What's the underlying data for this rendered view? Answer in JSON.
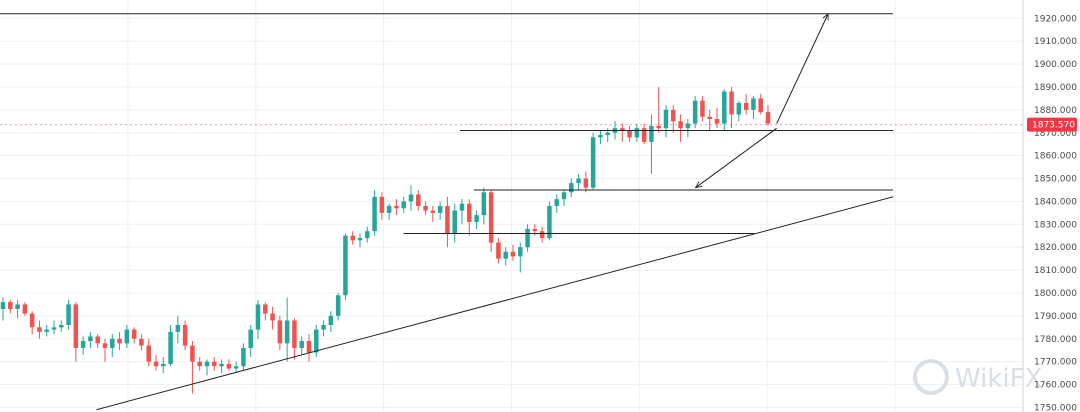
{
  "chart_data": {
    "type": "candlestick",
    "y_axis": {
      "min": 1748,
      "max": 1928,
      "ticks": [
        "1920.000",
        "1910.000",
        "1900.000",
        "1890.000",
        "1880.000",
        "1870.000",
        "1860.000",
        "1850.000",
        "1840.000",
        "1830.000",
        "1820.000",
        "1810.000",
        "1800.000",
        "1790.000",
        "1780.000",
        "1770.000",
        "1760.000",
        "1750.000"
      ],
      "position": "right"
    },
    "current_price": {
      "label": "1873.570",
      "value": 1873.57,
      "color": "#f23645"
    },
    "colors": {
      "up": "#26a69a",
      "down": "#ef5350",
      "grid": "#eef0f3",
      "line": "#222222"
    },
    "grid": true,
    "candles": [
      {
        "o": 1793,
        "h": 1798,
        "l": 1788,
        "c": 1796
      },
      {
        "o": 1796,
        "h": 1797,
        "l": 1791,
        "c": 1793
      },
      {
        "o": 1793,
        "h": 1797,
        "l": 1789,
        "c": 1795
      },
      {
        "o": 1795,
        "h": 1796,
        "l": 1790,
        "c": 1791
      },
      {
        "o": 1791,
        "h": 1792,
        "l": 1782,
        "c": 1785
      },
      {
        "o": 1785,
        "h": 1788,
        "l": 1780,
        "c": 1783
      },
      {
        "o": 1783,
        "h": 1786,
        "l": 1781,
        "c": 1784
      },
      {
        "o": 1784,
        "h": 1788,
        "l": 1782,
        "c": 1785
      },
      {
        "o": 1785,
        "h": 1788,
        "l": 1783,
        "c": 1786
      },
      {
        "o": 1786,
        "h": 1797,
        "l": 1784,
        "c": 1795
      },
      {
        "o": 1795,
        "h": 1796,
        "l": 1770,
        "c": 1776
      },
      {
        "o": 1776,
        "h": 1781,
        "l": 1773,
        "c": 1779
      },
      {
        "o": 1779,
        "h": 1783,
        "l": 1776,
        "c": 1781
      },
      {
        "o": 1781,
        "h": 1782,
        "l": 1776,
        "c": 1778
      },
      {
        "o": 1778,
        "h": 1780,
        "l": 1770,
        "c": 1776
      },
      {
        "o": 1776,
        "h": 1782,
        "l": 1772,
        "c": 1780
      },
      {
        "o": 1780,
        "h": 1783,
        "l": 1775,
        "c": 1778
      },
      {
        "o": 1778,
        "h": 1786,
        "l": 1776,
        "c": 1784
      },
      {
        "o": 1784,
        "h": 1785,
        "l": 1778,
        "c": 1780
      },
      {
        "o": 1780,
        "h": 1782,
        "l": 1775,
        "c": 1777
      },
      {
        "o": 1777,
        "h": 1780,
        "l": 1768,
        "c": 1770
      },
      {
        "o": 1770,
        "h": 1773,
        "l": 1766,
        "c": 1768
      },
      {
        "o": 1768,
        "h": 1772,
        "l": 1765,
        "c": 1769
      },
      {
        "o": 1769,
        "h": 1786,
        "l": 1768,
        "c": 1783
      },
      {
        "o": 1783,
        "h": 1790,
        "l": 1778,
        "c": 1786
      },
      {
        "o": 1786,
        "h": 1788,
        "l": 1775,
        "c": 1777
      },
      {
        "o": 1777,
        "h": 1779,
        "l": 1756,
        "c": 1770
      },
      {
        "o": 1770,
        "h": 1772,
        "l": 1766,
        "c": 1768
      },
      {
        "o": 1768,
        "h": 1771,
        "l": 1764,
        "c": 1770
      },
      {
        "o": 1770,
        "h": 1772,
        "l": 1766,
        "c": 1768
      },
      {
        "o": 1768,
        "h": 1771,
        "l": 1765,
        "c": 1769
      },
      {
        "o": 1769,
        "h": 1771,
        "l": 1766,
        "c": 1767
      },
      {
        "o": 1767,
        "h": 1770,
        "l": 1765,
        "c": 1768
      },
      {
        "o": 1768,
        "h": 1778,
        "l": 1766,
        "c": 1776
      },
      {
        "o": 1776,
        "h": 1786,
        "l": 1772,
        "c": 1784
      },
      {
        "o": 1784,
        "h": 1797,
        "l": 1780,
        "c": 1795
      },
      {
        "o": 1795,
        "h": 1796,
        "l": 1788,
        "c": 1791
      },
      {
        "o": 1791,
        "h": 1794,
        "l": 1784,
        "c": 1788
      },
      {
        "o": 1788,
        "h": 1790,
        "l": 1775,
        "c": 1778
      },
      {
        "o": 1778,
        "h": 1798,
        "l": 1770,
        "c": 1788
      },
      {
        "o": 1788,
        "h": 1789,
        "l": 1771,
        "c": 1776
      },
      {
        "o": 1776,
        "h": 1781,
        "l": 1773,
        "c": 1779
      },
      {
        "o": 1779,
        "h": 1782,
        "l": 1770,
        "c": 1774
      },
      {
        "o": 1774,
        "h": 1786,
        "l": 1772,
        "c": 1784
      },
      {
        "o": 1784,
        "h": 1788,
        "l": 1781,
        "c": 1786
      },
      {
        "o": 1786,
        "h": 1792,
        "l": 1783,
        "c": 1790
      },
      {
        "o": 1790,
        "h": 1800,
        "l": 1788,
        "c": 1799
      },
      {
        "o": 1799,
        "h": 1826,
        "l": 1797,
        "c": 1825
      },
      {
        "o": 1825,
        "h": 1827,
        "l": 1821,
        "c": 1823
      },
      {
        "o": 1823,
        "h": 1826,
        "l": 1820,
        "c": 1824
      },
      {
        "o": 1824,
        "h": 1829,
        "l": 1822,
        "c": 1827
      },
      {
        "o": 1827,
        "h": 1845,
        "l": 1825,
        "c": 1842
      },
      {
        "o": 1842,
        "h": 1844,
        "l": 1832,
        "c": 1835
      },
      {
        "o": 1835,
        "h": 1839,
        "l": 1832,
        "c": 1838
      },
      {
        "o": 1838,
        "h": 1841,
        "l": 1834,
        "c": 1837
      },
      {
        "o": 1837,
        "h": 1842,
        "l": 1835,
        "c": 1840
      },
      {
        "o": 1840,
        "h": 1847,
        "l": 1836,
        "c": 1843
      },
      {
        "o": 1843,
        "h": 1845,
        "l": 1836,
        "c": 1838
      },
      {
        "o": 1838,
        "h": 1840,
        "l": 1834,
        "c": 1836
      },
      {
        "o": 1836,
        "h": 1838,
        "l": 1831,
        "c": 1835
      },
      {
        "o": 1835,
        "h": 1840,
        "l": 1832,
        "c": 1838
      },
      {
        "o": 1838,
        "h": 1842,
        "l": 1820,
        "c": 1826
      },
      {
        "o": 1826,
        "h": 1839,
        "l": 1822,
        "c": 1836
      },
      {
        "o": 1836,
        "h": 1841,
        "l": 1830,
        "c": 1839
      },
      {
        "o": 1839,
        "h": 1841,
        "l": 1825,
        "c": 1831
      },
      {
        "o": 1831,
        "h": 1836,
        "l": 1828,
        "c": 1834
      },
      {
        "o": 1834,
        "h": 1846,
        "l": 1830,
        "c": 1844
      },
      {
        "o": 1844,
        "h": 1845,
        "l": 1818,
        "c": 1822
      },
      {
        "o": 1822,
        "h": 1824,
        "l": 1813,
        "c": 1815
      },
      {
        "o": 1815,
        "h": 1820,
        "l": 1812,
        "c": 1818
      },
      {
        "o": 1818,
        "h": 1821,
        "l": 1814,
        "c": 1816
      },
      {
        "o": 1816,
        "h": 1822,
        "l": 1809,
        "c": 1820
      },
      {
        "o": 1820,
        "h": 1830,
        "l": 1818,
        "c": 1828
      },
      {
        "o": 1828,
        "h": 1830,
        "l": 1825,
        "c": 1827
      },
      {
        "o": 1827,
        "h": 1829,
        "l": 1822,
        "c": 1824
      },
      {
        "o": 1824,
        "h": 1840,
        "l": 1823,
        "c": 1838
      },
      {
        "o": 1838,
        "h": 1843,
        "l": 1835,
        "c": 1841
      },
      {
        "o": 1841,
        "h": 1845,
        "l": 1838,
        "c": 1844
      },
      {
        "o": 1844,
        "h": 1850,
        "l": 1842,
        "c": 1848
      },
      {
        "o": 1848,
        "h": 1852,
        "l": 1845,
        "c": 1850
      },
      {
        "o": 1850,
        "h": 1853,
        "l": 1844,
        "c": 1846
      },
      {
        "o": 1846,
        "h": 1870,
        "l": 1845,
        "c": 1868
      },
      {
        "o": 1868,
        "h": 1871,
        "l": 1865,
        "c": 1869
      },
      {
        "o": 1869,
        "h": 1872,
        "l": 1866,
        "c": 1870
      },
      {
        "o": 1870,
        "h": 1875,
        "l": 1867,
        "c": 1872
      },
      {
        "o": 1872,
        "h": 1874,
        "l": 1866,
        "c": 1871
      },
      {
        "o": 1871,
        "h": 1873,
        "l": 1866,
        "c": 1868
      },
      {
        "o": 1868,
        "h": 1874,
        "l": 1866,
        "c": 1872
      },
      {
        "o": 1872,
        "h": 1874,
        "l": 1865,
        "c": 1866
      },
      {
        "o": 1866,
        "h": 1878,
        "l": 1852,
        "c": 1873
      },
      {
        "o": 1873,
        "h": 1890,
        "l": 1870,
        "c": 1872
      },
      {
        "o": 1872,
        "h": 1882,
        "l": 1868,
        "c": 1880
      },
      {
        "o": 1880,
        "h": 1882,
        "l": 1870,
        "c": 1875
      },
      {
        "o": 1875,
        "h": 1878,
        "l": 1866,
        "c": 1872
      },
      {
        "o": 1872,
        "h": 1876,
        "l": 1868,
        "c": 1874
      },
      {
        "o": 1874,
        "h": 1886,
        "l": 1872,
        "c": 1884
      },
      {
        "o": 1884,
        "h": 1886,
        "l": 1875,
        "c": 1877
      },
      {
        "o": 1877,
        "h": 1880,
        "l": 1871,
        "c": 1876
      },
      {
        "o": 1876,
        "h": 1881,
        "l": 1872,
        "c": 1874
      },
      {
        "o": 1874,
        "h": 1889,
        "l": 1871,
        "c": 1888
      },
      {
        "o": 1888,
        "h": 1890,
        "l": 1872,
        "c": 1878
      },
      {
        "o": 1878,
        "h": 1884,
        "l": 1875,
        "c": 1883
      },
      {
        "o": 1883,
        "h": 1887,
        "l": 1878,
        "c": 1880
      },
      {
        "o": 1880,
        "h": 1886,
        "l": 1876,
        "c": 1885
      },
      {
        "o": 1885,
        "h": 1887,
        "l": 1878,
        "c": 1879
      },
      {
        "o": 1879,
        "h": 1882,
        "l": 1873,
        "c": 1874
      }
    ],
    "annotations": {
      "horizontal_lines": [
        {
          "name": "top-resistance",
          "y": 1922,
          "x_start": 0,
          "x_end": 1.0
        },
        {
          "name": "upper-support",
          "y": 1871,
          "x_start": 0.4495,
          "x_end": 1.0
        },
        {
          "name": "middle-support",
          "y": 1845,
          "x_start": 0.4633,
          "x_end": 1.0
        },
        {
          "name": "lower-support",
          "y": 1826,
          "x_start": 0.3945,
          "x_end": 0.7376
        }
      ],
      "trendline": {
        "from": {
          "x": 0.06,
          "y": 1749
        },
        "to": {
          "x": 1.0,
          "y": 1842
        }
      },
      "arrows": [
        {
          "name": "up-arrow",
          "from": {
            "x": 0.7514,
            "y": 1874
          },
          "to": {
            "x": 0.9415,
            "y": 1922
          }
        },
        {
          "name": "down-arrow",
          "from": {
            "x": 0.7514,
            "y": 1872
          },
          "to": {
            "x": 0.8119,
            "y": 1846
          }
        }
      ]
    },
    "watermark": {
      "icon": "wikifx-logo-icon",
      "text": "WikiFX"
    }
  }
}
